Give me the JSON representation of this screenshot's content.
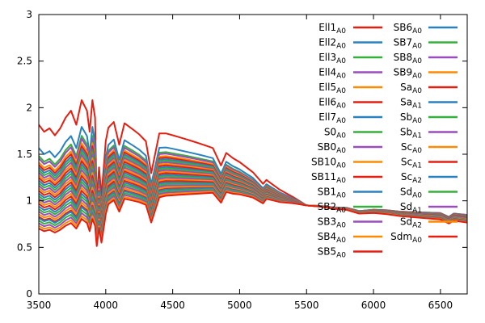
{
  "chart_data": {
    "type": "line",
    "xlim": [
      3500,
      6700
    ],
    "ylim": [
      0,
      3
    ],
    "xticks": [
      "3500",
      "4000",
      "4500",
      "5000",
      "5500",
      "6000",
      "6500"
    ],
    "yticks": [
      "0",
      "0.5",
      "1",
      "1.5",
      "2",
      "2.5",
      "3"
    ],
    "grid": false,
    "legend_position": "top-right",
    "base_profile": {
      "x": [
        3500,
        3540,
        3580,
        3620,
        3660,
        3700,
        3740,
        3780,
        3820,
        3860,
        3880,
        3900,
        3920,
        3933,
        3950,
        3968,
        3990,
        4000,
        4020,
        4060,
        4101,
        4140,
        4200,
        4250,
        4300,
        4340,
        4400,
        4450,
        4500,
        4550,
        4600,
        4650,
        4700,
        4750,
        4800,
        4861,
        4900,
        4950,
        5000,
        5050,
        5100,
        5175,
        5200,
        5250,
        5300,
        5400,
        5500,
        5600,
        5700,
        5800,
        5893,
        6000,
        6100,
        6200,
        6300,
        6400,
        6500,
        6563,
        6600,
        6700
      ],
      "y": [
        0.48,
        0.46,
        0.47,
        0.45,
        0.47,
        0.5,
        0.52,
        0.48,
        0.55,
        0.52,
        0.46,
        0.55,
        0.5,
        0.42,
        0.58,
        0.45,
        0.62,
        0.7,
        0.8,
        0.84,
        0.74,
        0.86,
        0.85,
        0.84,
        0.82,
        0.66,
        0.9,
        0.92,
        0.93,
        0.94,
        0.95,
        0.96,
        0.97,
        0.98,
        0.99,
        0.9,
        1.01,
        1.0,
        1.0,
        0.99,
        0.98,
        0.93,
        0.98,
        0.97,
        0.96,
        0.96,
        0.95,
        0.95,
        0.94,
        0.94,
        0.91,
        0.93,
        0.93,
        0.92,
        0.92,
        0.92,
        0.92,
        0.88,
        0.92,
        0.91
      ]
    },
    "series": [
      {
        "name": "Ell1",
        "sub": "A0",
        "color": "#e51e10",
        "blue": 0.96,
        "red": 0.85
      },
      {
        "name": "Ell2",
        "sub": "A0",
        "color": "#2a81c0",
        "blue": 0.78,
        "red": 0.85
      },
      {
        "name": "Ell3",
        "sub": "A0",
        "color": "#35b03b",
        "blue": 0.72,
        "red": 0.84
      },
      {
        "name": "Ell4",
        "sub": "A0",
        "color": "#9a4dbb",
        "blue": 0.7,
        "red": 0.84
      },
      {
        "name": "Ell5",
        "sub": "A0",
        "color": "#ff8a00",
        "blue": 0.67,
        "red": 0.83
      },
      {
        "name": "Ell6",
        "sub": "A0",
        "color": "#e51e10",
        "blue": 0.65,
        "red": 0.83
      },
      {
        "name": "Ell7",
        "sub": "A0",
        "color": "#2a81c0",
        "blue": 0.63,
        "red": 0.82
      },
      {
        "name": "S0",
        "sub": "A0",
        "color": "#35b03b",
        "blue": 0.61,
        "red": 0.82
      },
      {
        "name": "SB0",
        "sub": "A0",
        "color": "#9a4dbb",
        "blue": 0.59,
        "red": 0.81
      },
      {
        "name": "SB10",
        "sub": "A0",
        "color": "#ff8a00",
        "blue": 0.57,
        "red": 0.8
      },
      {
        "name": "SB11",
        "sub": "A0",
        "color": "#e51e10",
        "blue": 0.55,
        "red": 0.8
      },
      {
        "name": "SB1",
        "sub": "A0",
        "color": "#2a81c0",
        "blue": 0.53,
        "red": 0.79
      },
      {
        "name": "SB2",
        "sub": "A0",
        "color": "#35b03b",
        "blue": 0.51,
        "red": 0.79
      },
      {
        "name": "SB3",
        "sub": "A0",
        "color": "#9a4dbb",
        "blue": 0.49,
        "red": 0.78
      },
      {
        "name": "SB4",
        "sub": "A0",
        "color": "#ff8a00",
        "blue": 0.47,
        "red": 0.77
      },
      {
        "name": "SB5",
        "sub": "A0",
        "color": "#e51e10",
        "blue": 0.45,
        "red": 0.77
      },
      {
        "name": "SB6",
        "sub": "A0",
        "color": "#2a81c0",
        "blue": 0.43,
        "red": 0.76
      },
      {
        "name": "SB7",
        "sub": "A0",
        "color": "#35b03b",
        "blue": 0.41,
        "red": 0.75
      },
      {
        "name": "SB8",
        "sub": "A0",
        "color": "#9a4dbb",
        "blue": 0.39,
        "red": 0.75
      },
      {
        "name": "SB9",
        "sub": "A0",
        "color": "#ff8a00",
        "blue": 0.37,
        "red": 0.74
      },
      {
        "name": "Sa",
        "sub": "A0",
        "color": "#e51e10",
        "blue": 0.35,
        "red": 0.73
      },
      {
        "name": "Sa",
        "sub": "A1",
        "color": "#2a81c0",
        "blue": 0.33,
        "red": 0.73
      },
      {
        "name": "Sb",
        "sub": "A0",
        "color": "#35b03b",
        "blue": 0.31,
        "red": 0.72
      },
      {
        "name": "Sb",
        "sub": "A1",
        "color": "#9a4dbb",
        "blue": 0.29,
        "red": 0.71
      },
      {
        "name": "Sc",
        "sub": "A0",
        "color": "#ff8a00",
        "blue": 0.27,
        "red": 0.71
      },
      {
        "name": "Sc",
        "sub": "A1",
        "color": "#e51e10",
        "blue": 0.25,
        "red": 0.7
      },
      {
        "name": "Sc",
        "sub": "A2",
        "color": "#2a81c0",
        "blue": 0.24,
        "red": 0.69
      },
      {
        "name": "Sd",
        "sub": "A0",
        "color": "#35b03b",
        "blue": 0.22,
        "red": 0.68
      },
      {
        "name": "Sd",
        "sub": "A1",
        "color": "#9a4dbb",
        "blue": 0.2,
        "red": 0.67
      },
      {
        "name": "Sd",
        "sub": "A2",
        "color": "#ff8a00",
        "blue": 0.18,
        "red": 0.66
      },
      {
        "name": "Sdm",
        "sub": "A0",
        "color": "#e51e10",
        "blue": 0.16,
        "red": 0.65
      }
    ]
  }
}
